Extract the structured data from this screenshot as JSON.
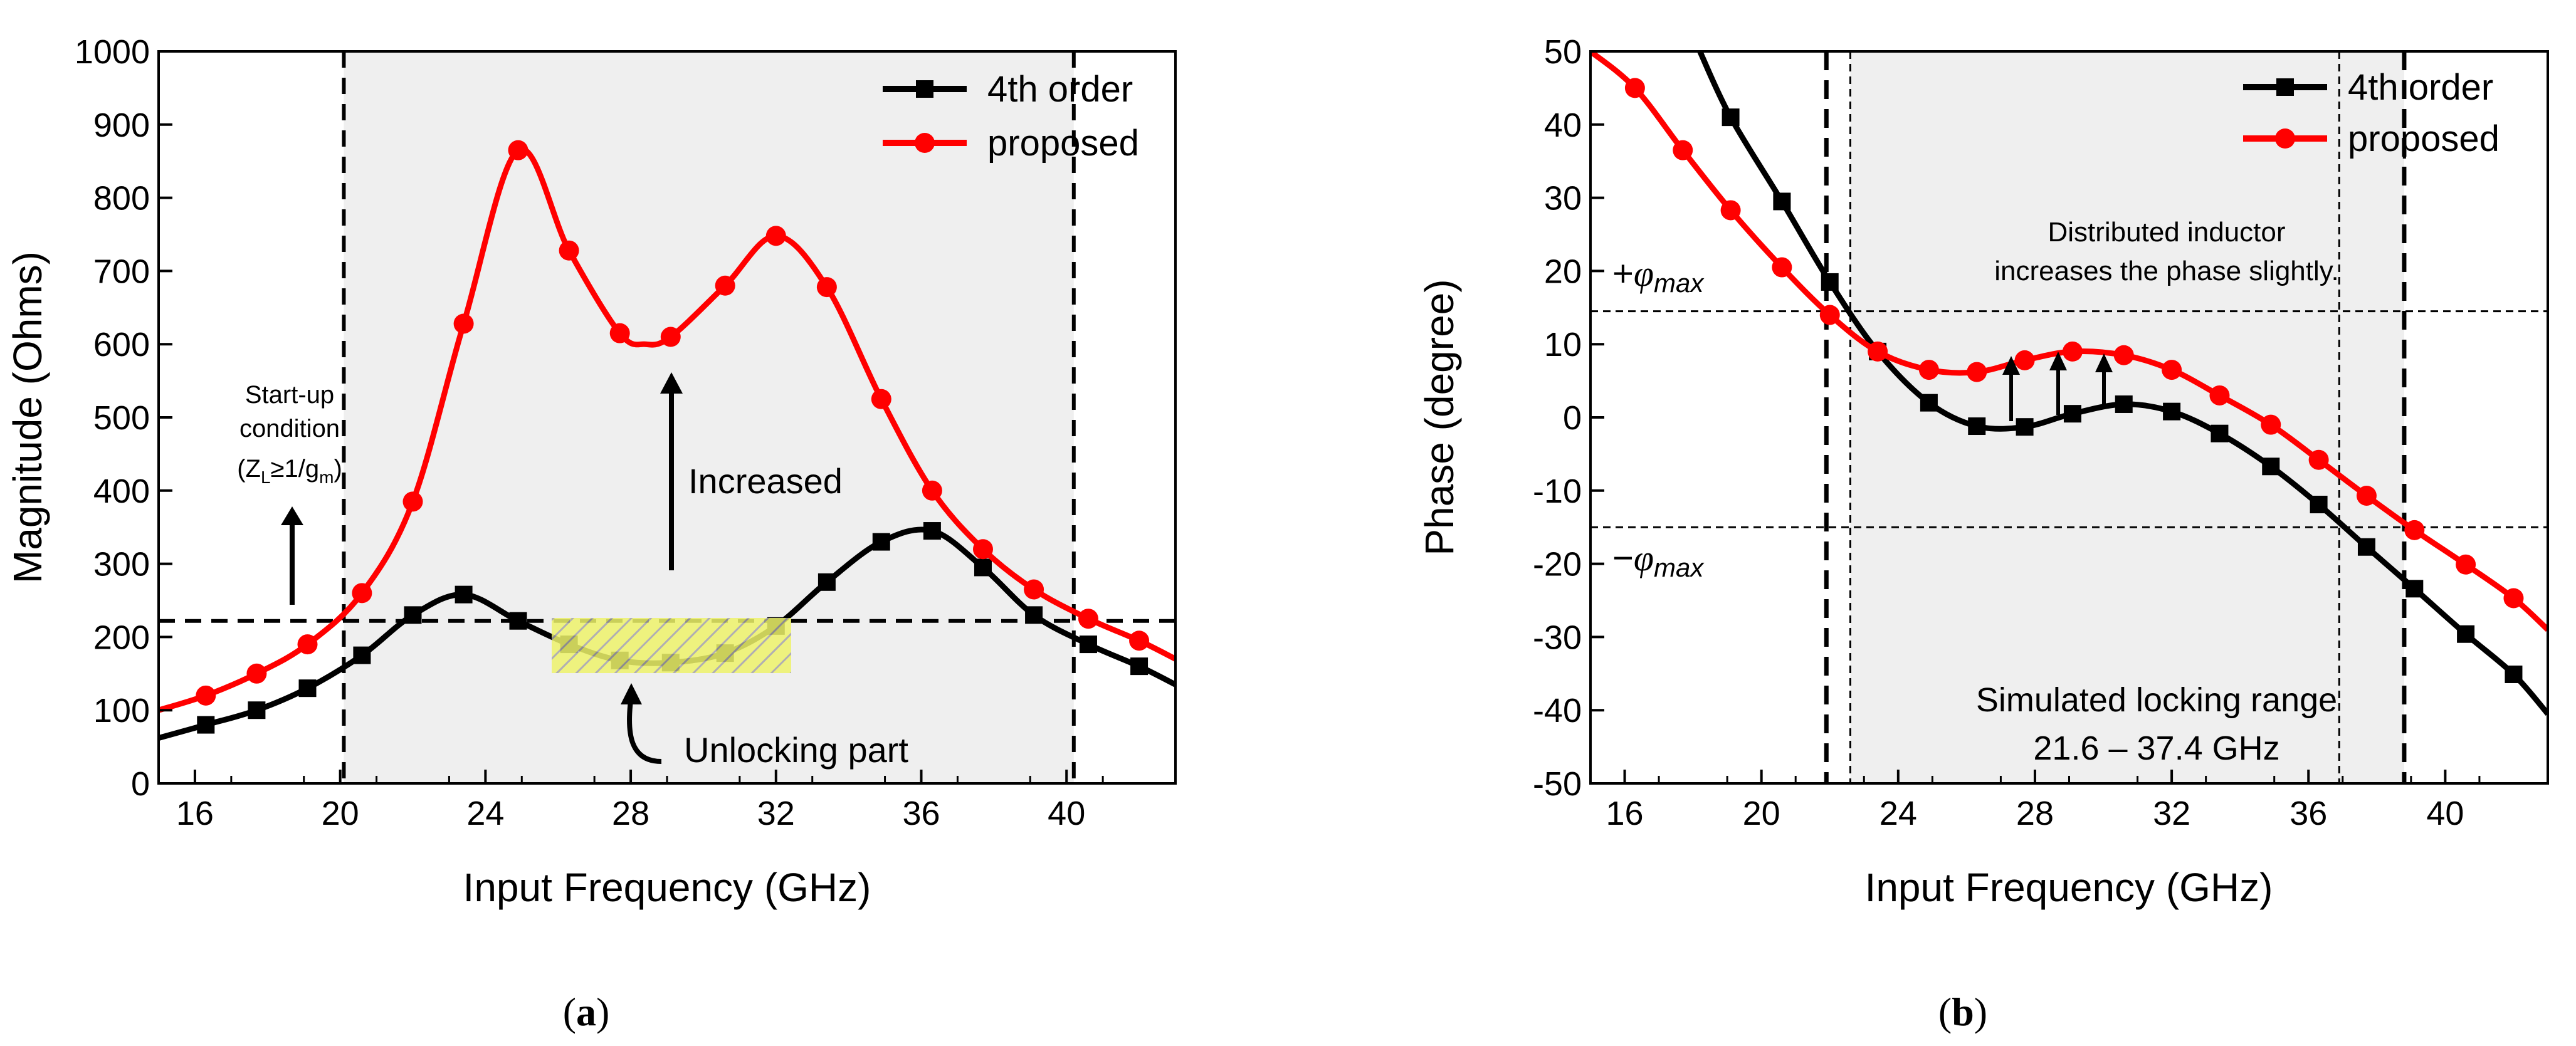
{
  "chart_data": [
    {
      "type": "line",
      "panel_label": "a",
      "xlabel": "Input Frequency (GHz)",
      "ylabel": "Magnitude (Ohms)",
      "xlim": [
        15,
        43
      ],
      "ylim": [
        0,
        1000
      ],
      "xticks": [
        16,
        20,
        24,
        28,
        32,
        36,
        40
      ],
      "yticks": [
        0,
        100,
        200,
        300,
        400,
        500,
        600,
        700,
        800,
        900,
        1000
      ],
      "grid": false,
      "legend_position": "top-right",
      "shaded_region_x": [
        20.1,
        40.2
      ],
      "series": [
        {
          "name": "4th order",
          "color": "#000000",
          "marker": "square",
          "x": [
            15,
            16.3,
            17.7,
            19.1,
            20.6,
            22,
            23.4,
            24.9,
            26.3,
            27.7,
            29.1,
            30.6,
            32,
            33.4,
            34.9,
            36.3,
            37.7,
            39.1,
            40.6,
            42,
            43
          ],
          "values": [
            62,
            80,
            100,
            130,
            175,
            230,
            258,
            222,
            190,
            168,
            165,
            178,
            215,
            275,
            330,
            345,
            295,
            230,
            190,
            160,
            135
          ],
          "marker_x": [
            16.3,
            17.7,
            19.1,
            20.6,
            22,
            23.4,
            24.9,
            26.3,
            27.7,
            29.1,
            30.6,
            32,
            33.4,
            34.9,
            36.3,
            37.7,
            39.1,
            40.6,
            42
          ],
          "marker_values": [
            80,
            100,
            130,
            175,
            230,
            258,
            222,
            190,
            168,
            165,
            178,
            215,
            275,
            330,
            345,
            295,
            230,
            190,
            160
          ]
        },
        {
          "name": "proposed",
          "color": "#ff0000",
          "marker": "circle",
          "x": [
            15,
            16.3,
            17.7,
            19.1,
            20.6,
            22,
            23.4,
            24.9,
            26.3,
            27.7,
            28.4,
            29.1,
            30.6,
            32,
            33.4,
            34.9,
            36.3,
            37.7,
            39.1,
            40.6,
            42,
            43
          ],
          "values": [
            100,
            120,
            150,
            190,
            260,
            385,
            628,
            865,
            728,
            615,
            600,
            610,
            680,
            748,
            678,
            525,
            400,
            320,
            265,
            225,
            195,
            170
          ],
          "marker_x": [
            16.3,
            17.7,
            19.1,
            20.6,
            22,
            23.4,
            24.9,
            26.3,
            27.7,
            29.1,
            30.6,
            32,
            33.4,
            34.9,
            36.3,
            37.7,
            39.1,
            40.6,
            42
          ],
          "marker_values": [
            120,
            150,
            190,
            260,
            385,
            628,
            865,
            728,
            615,
            610,
            680,
            748,
            678,
            525,
            400,
            320,
            265,
            225,
            195
          ]
        }
      ],
      "reference_lines": {
        "horizontal_y": [
          222
        ],
        "vertical_x": [
          20.1,
          40.2
        ]
      },
      "annotations": {
        "startup_line1": "Start-up",
        "startup_line2": "condition",
        "startup_line3": "(Z",
        "startup_sub_l": "L",
        "startup_mid": "≥1/g",
        "startup_sub_m": "m",
        "startup_end": ")",
        "increased": "Increased",
        "unlocking": "Unlocking part"
      }
    },
    {
      "type": "line",
      "panel_label": "b",
      "xlabel": "Input Frequency (GHz)",
      "ylabel": "Phase (degree)",
      "xlim": [
        15,
        43
      ],
      "ylim": [
        -50,
        50
      ],
      "xticks": [
        16,
        20,
        24,
        28,
        32,
        36,
        40
      ],
      "yticks": [
        -50,
        -40,
        -30,
        -20,
        -10,
        0,
        10,
        20,
        30,
        40,
        50
      ],
      "grid": false,
      "legend_position": "top-right",
      "shaded_region_x": [
        22.6,
        38.8
      ],
      "series": [
        {
          "name": "4th order",
          "color": "#000000",
          "marker": "square",
          "x": [
            18.2,
            19.1,
            20.6,
            22,
            23.4,
            24.9,
            26.3,
            27.7,
            29.1,
            30.6,
            32,
            33.4,
            34.9,
            36.3,
            37.7,
            39.1,
            40.6,
            42,
            43
          ],
          "values": [
            50,
            41,
            29.5,
            18.5,
            9,
            2,
            -1.2,
            -1.3,
            0.5,
            1.8,
            0.8,
            -2.2,
            -6.7,
            -11.9,
            -17.7,
            -23.4,
            -29.6,
            -35.1,
            -40.5
          ],
          "marker_x": [
            19.1,
            20.6,
            22,
            23.4,
            24.9,
            26.3,
            27.7,
            29.1,
            30.6,
            32,
            33.4,
            34.9,
            36.3,
            37.7,
            39.1,
            40.6,
            42
          ],
          "marker_values": [
            41,
            29.5,
            18.5,
            9,
            2,
            -1.2,
            -1.3,
            0.5,
            1.8,
            0.8,
            -2.2,
            -6.7,
            -11.9,
            -17.7,
            -23.4,
            -29.6,
            -35.1
          ]
        },
        {
          "name": "proposed",
          "color": "#ff0000",
          "marker": "circle",
          "x": [
            15,
            16.3,
            17.7,
            19.1,
            20.6,
            22,
            23.4,
            24.9,
            26.3,
            27.7,
            29.1,
            30.6,
            32,
            33.4,
            34.9,
            36.3,
            37.7,
            39.1,
            40.6,
            42,
            43
          ],
          "values": [
            50,
            45,
            36.5,
            28.3,
            20.5,
            14,
            9,
            6.5,
            6.2,
            7.8,
            9,
            8.5,
            6.5,
            3,
            -1,
            -5.8,
            -10.7,
            -15.4,
            -20.1,
            -24.7,
            -29
          ],
          "marker_x": [
            16.3,
            17.7,
            19.1,
            20.6,
            22,
            23.4,
            24.9,
            26.3,
            27.7,
            29.1,
            30.6,
            32,
            33.4,
            34.9,
            36.3,
            37.7,
            39.1,
            40.6,
            42
          ],
          "marker_values": [
            45,
            36.5,
            28.3,
            20.5,
            14,
            9,
            6.5,
            6.2,
            7.8,
            9,
            8.5,
            6.5,
            3,
            -1,
            -5.8,
            -10.7,
            -15.4,
            -20.1,
            -24.7
          ]
        }
      ],
      "reference_lines": {
        "horizontal_y": [
          14.5,
          -15
        ],
        "vertical_x_thick": [
          21.9,
          38.8
        ],
        "vertical_x_thin": [
          22.6,
          36.9
        ]
      },
      "annotations": {
        "phi_plus_sign": "+",
        "phi_minus_sign": "−",
        "phi": "φ",
        "phi_sub": "max",
        "distributed_line1": "Distributed inductor",
        "distributed_line2": "increases the phase slightly.",
        "locking_line1": "Simulated locking range",
        "locking_line2": "21.6 – 37.4 GHz"
      }
    }
  ]
}
